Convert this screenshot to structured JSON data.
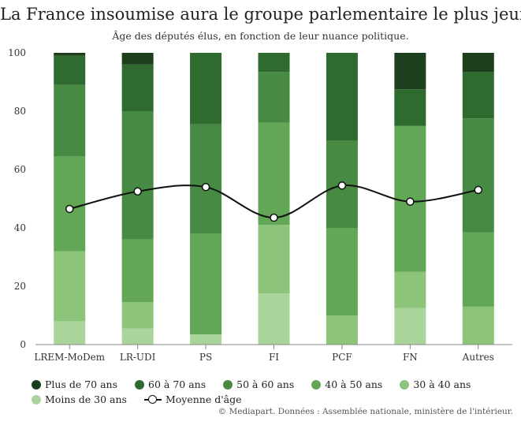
{
  "chart_data": {
    "type": "bar",
    "stacked": true,
    "title": "La France insoumise aura le groupe parlementaire le plus jeune",
    "subtitle": "Âge des députés élus, en fonction de leur nuance politique.",
    "categories": [
      "LREM-MoDem",
      "LR-UDI",
      "PS",
      "FI",
      "PCF",
      "FN",
      "Autres"
    ],
    "ylim": [
      0,
      100
    ],
    "yticks": [
      0,
      20,
      40,
      60,
      80,
      100
    ],
    "grid": false,
    "legend_position": "bottom",
    "series": [
      {
        "name": "Moins de 30 ans",
        "color": "#a9d49a",
        "values": [
          8,
          5.5,
          3.5,
          17.5,
          0,
          12.5,
          0
        ]
      },
      {
        "name": "30 à 40 ans",
        "color": "#8cc47a",
        "values": [
          24,
          9,
          0,
          23.5,
          10,
          12.5,
          13
        ]
      },
      {
        "name": "40 à 50 ans",
        "color": "#62a755",
        "values": [
          32.5,
          21.5,
          34.5,
          35,
          30,
          50,
          25.5
        ]
      },
      {
        "name": "50 à 60 ans",
        "color": "#478a43",
        "values": [
          24.5,
          44,
          37.5,
          17.5,
          30,
          0,
          39
        ]
      },
      {
        "name": "60 à 70 ans",
        "color": "#2f6a2f",
        "values": [
          10,
          16,
          24.5,
          6.5,
          30,
          12.5,
          16
        ]
      },
      {
        "name": "Plus de 70 ans",
        "color": "#1d3f1d",
        "values": [
          1,
          4,
          0,
          0,
          0,
          12.5,
          6.5
        ]
      }
    ],
    "average": {
      "name": "Moyenne d'âge",
      "color": "#111111",
      "values": [
        46.5,
        52.5,
        54,
        43.5,
        54.5,
        49,
        53
      ]
    }
  },
  "legend": {
    "row1": [
      "Plus de 70 ans",
      "60 à 70 ans",
      "50 à 60 ans",
      "40 à 50 ans",
      "30 à 40 ans"
    ],
    "row2": [
      "Moins de 30 ans"
    ],
    "average_label": "Moyenne d'âge"
  },
  "source": "© Mediapart. Données : Assemblée nationale, ministère de l'intérieur."
}
